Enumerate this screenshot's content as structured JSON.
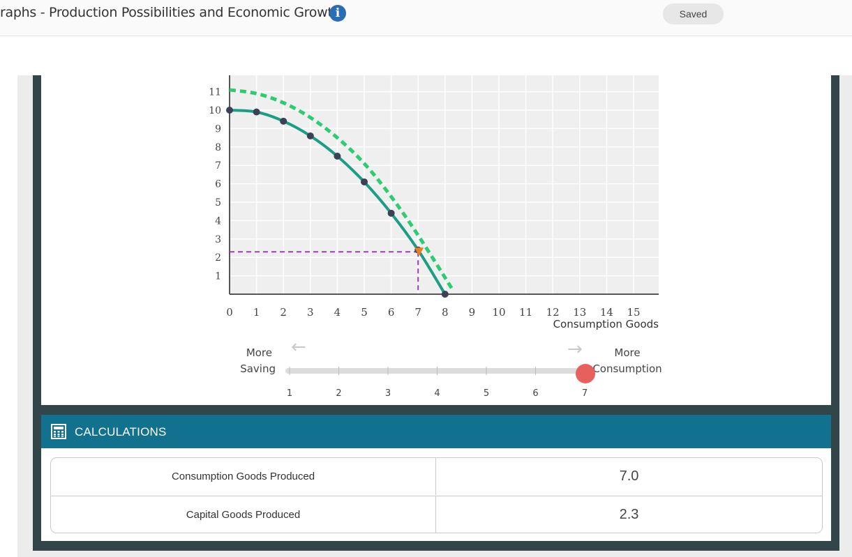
{
  "header": {
    "title": "raphs - Production Possibilities and Economic Growth",
    "info_icon": "info-icon",
    "saved_label": "Saved"
  },
  "chart_data": {
    "type": "line",
    "xlabel": "Consumption Goods",
    "ylabel": "",
    "xlim": [
      0,
      16
    ],
    "ylim": [
      0,
      11
    ],
    "x_ticks": [
      "0",
      "1",
      "2",
      "3",
      "4",
      "5",
      "6",
      "7",
      "8",
      "9",
      "10",
      "11",
      "12",
      "13",
      "14",
      "15"
    ],
    "y_ticks": [
      "1",
      "2",
      "3",
      "4",
      "5",
      "6",
      "7",
      "8",
      "9",
      "10",
      "11"
    ],
    "grid": true,
    "series": [
      {
        "style": "solid",
        "color": "#1a9e84",
        "points": [
          [
            0,
            10.0
          ],
          [
            1,
            9.9
          ],
          [
            2,
            9.4
          ],
          [
            3,
            8.6
          ],
          [
            4,
            7.5
          ],
          [
            5,
            6.1
          ],
          [
            6,
            4.4
          ],
          [
            7,
            2.4
          ],
          [
            8,
            0
          ]
        ]
      },
      {
        "style": "dashed",
        "color": "#2ecc71",
        "points": [
          [
            0,
            11.1
          ],
          [
            1,
            10.9
          ],
          [
            2,
            10.4
          ],
          [
            3,
            9.6
          ],
          [
            4,
            8.5
          ],
          [
            5,
            7.1
          ],
          [
            6,
            5.3
          ],
          [
            7,
            3.2
          ],
          [
            8.3,
            0.2
          ]
        ]
      }
    ],
    "selected_point": {
      "x": 7.0,
      "y": 2.3,
      "marker_color": "#e67e22"
    },
    "guide_color": "#9b3fb5"
  },
  "slider": {
    "left_label_line1": "More",
    "left_label_line2": "Saving",
    "right_label_line1": "More",
    "right_label_line2": "Consumption",
    "left_arrow": "←",
    "right_arrow": "→",
    "ticks": [
      "1",
      "2",
      "3",
      "4",
      "5",
      "6",
      "7"
    ],
    "value": 7,
    "knob_color": "#e8605e"
  },
  "calculations": {
    "title": "CALCULATIONS",
    "icon": "calculator-icon",
    "rows": [
      {
        "label": "Consumption Goods Produced",
        "value": "7.0"
      },
      {
        "label": "Capital Goods Produced",
        "value": "2.3"
      }
    ]
  }
}
